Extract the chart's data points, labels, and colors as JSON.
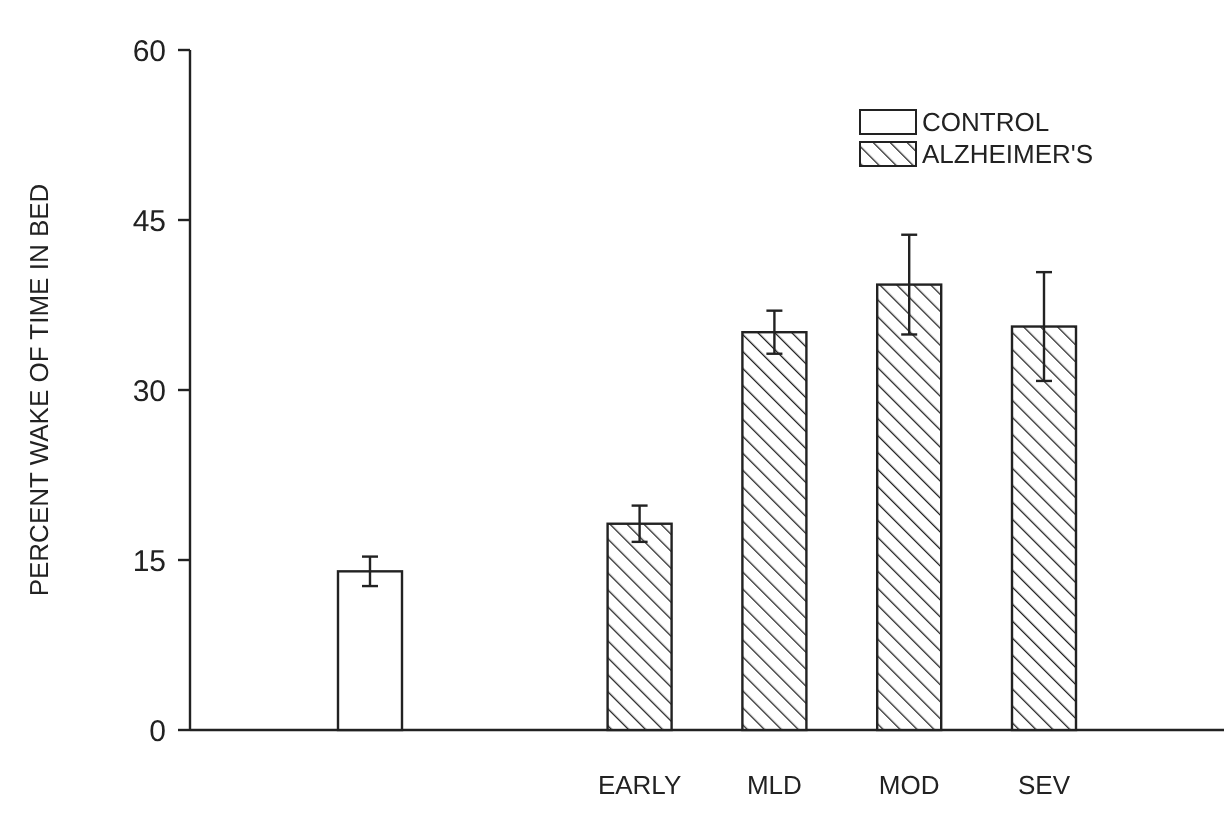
{
  "chart_data": {
    "type": "bar",
    "ylabel": "PERCENT WAKE OF TIME IN BED",
    "categories": [
      null,
      null,
      "EARLY",
      "MLD",
      "MOD",
      "SEV"
    ],
    "series": [
      {
        "name": "CONTROL",
        "color": "#ffffff",
        "values": [
          14,
          null,
          null,
          null,
          null,
          null
        ],
        "errors": [
          1.3,
          null,
          null,
          null,
          null,
          null
        ]
      },
      {
        "name": "ALZHEIMER'S",
        "color": "#222222",
        "values": [
          null,
          null,
          18.2,
          35.1,
          39.3,
          35.6
        ],
        "errors": [
          null,
          null,
          1.6,
          1.9,
          4.4,
          4.8
        ]
      }
    ],
    "ylim": [
      0,
      60
    ],
    "yticks": [
      0,
      15,
      30,
      45,
      60
    ],
    "legend": "top right"
  }
}
